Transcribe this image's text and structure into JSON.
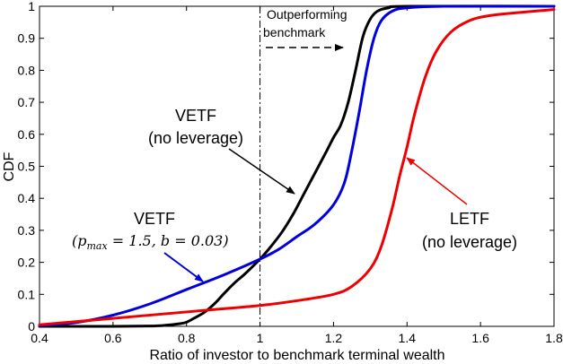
{
  "chart_data": {
    "type": "line",
    "xlabel": "Ratio of investor to benchmark terminal wealth",
    "ylabel": "CDF",
    "xlim": [
      0.4,
      1.8
    ],
    "ylim": [
      0,
      1
    ],
    "xticks": [
      "0.4",
      "0.6",
      "0.8",
      "1",
      "1.2",
      "1.4",
      "1.6",
      "1.8"
    ],
    "yticks": [
      "0",
      "0.1",
      "0.2",
      "0.3",
      "0.4",
      "0.5",
      "0.6",
      "0.7",
      "0.8",
      "0.9",
      "1"
    ],
    "grid": false,
    "series": [
      {
        "color": "#000000",
        "points": [
          [
            0.4,
            0
          ],
          [
            0.6,
            0
          ],
          [
            0.7,
            0.001
          ],
          [
            0.74,
            0.003
          ],
          [
            0.78,
            0.008
          ],
          [
            0.8,
            0.013
          ],
          [
            0.82,
            0.025
          ],
          [
            0.85,
            0.045
          ],
          [
            0.88,
            0.075
          ],
          [
            0.9,
            0.1
          ],
          [
            0.93,
            0.135
          ],
          [
            0.96,
            0.165
          ],
          [
            1.0,
            0.21
          ],
          [
            1.03,
            0.25
          ],
          [
            1.06,
            0.295
          ],
          [
            1.09,
            0.35
          ],
          [
            1.12,
            0.415
          ],
          [
            1.15,
            0.48
          ],
          [
            1.18,
            0.545
          ],
          [
            1.2,
            0.59
          ],
          [
            1.22,
            0.63
          ],
          [
            1.24,
            0.7
          ],
          [
            1.26,
            0.8
          ],
          [
            1.28,
            0.905
          ],
          [
            1.3,
            0.96
          ],
          [
            1.32,
            0.985
          ],
          [
            1.35,
            0.995
          ],
          [
            1.4,
            1
          ],
          [
            1.8,
            1
          ]
        ]
      },
      {
        "color": "#0000dd",
        "points": [
          [
            0.4,
            0.002
          ],
          [
            0.5,
            0.012
          ],
          [
            0.6,
            0.035
          ],
          [
            0.7,
            0.07
          ],
          [
            0.8,
            0.115
          ],
          [
            0.9,
            0.16
          ],
          [
            1.0,
            0.21
          ],
          [
            1.05,
            0.24
          ],
          [
            1.1,
            0.28
          ],
          [
            1.15,
            0.32
          ],
          [
            1.2,
            0.38
          ],
          [
            1.23,
            0.45
          ],
          [
            1.25,
            0.55
          ],
          [
            1.27,
            0.67
          ],
          [
            1.29,
            0.8
          ],
          [
            1.31,
            0.9
          ],
          [
            1.33,
            0.955
          ],
          [
            1.36,
            0.985
          ],
          [
            1.4,
            0.995
          ],
          [
            1.5,
            1
          ],
          [
            1.8,
            1
          ]
        ]
      },
      {
        "color": "#ee0000",
        "points": [
          [
            0.4,
            0.005
          ],
          [
            0.6,
            0.025
          ],
          [
            0.8,
            0.045
          ],
          [
            0.9,
            0.055
          ],
          [
            1.0,
            0.065
          ],
          [
            1.1,
            0.08
          ],
          [
            1.2,
            0.1
          ],
          [
            1.25,
            0.125
          ],
          [
            1.3,
            0.18
          ],
          [
            1.33,
            0.25
          ],
          [
            1.36,
            0.37
          ],
          [
            1.38,
            0.47
          ],
          [
            1.4,
            0.56
          ],
          [
            1.42,
            0.66
          ],
          [
            1.45,
            0.78
          ],
          [
            1.48,
            0.86
          ],
          [
            1.52,
            0.92
          ],
          [
            1.57,
            0.955
          ],
          [
            1.62,
            0.97
          ],
          [
            1.7,
            0.98
          ],
          [
            1.8,
            0.99
          ]
        ]
      }
    ],
    "vline": {
      "x": 1,
      "style": "dash-dot"
    },
    "annotations": {
      "outperforming": [
        "Outperforming",
        "benchmark"
      ],
      "vetf_noleverage": [
        "VETF",
        "(no leverage)"
      ],
      "vetf_param_title": "VETF",
      "vetf_param_formula": "(p",
      "vetf_param_sub": "max",
      "vetf_param_rest": " = 1.5, b = 0.03)",
      "letf": [
        "LETF",
        "(no leverage)"
      ]
    }
  }
}
